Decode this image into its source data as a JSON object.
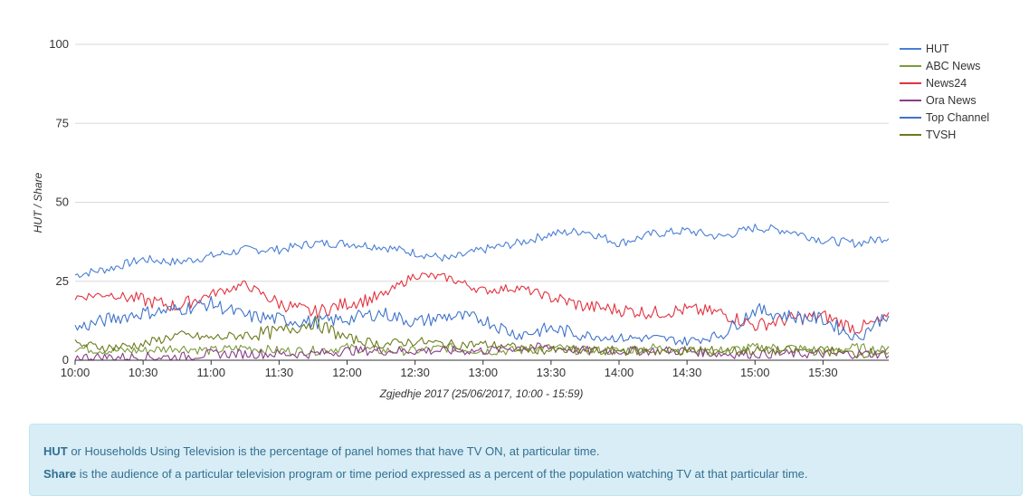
{
  "chart_data": {
    "type": "line",
    "xlabel": "Zgjedhje 2017 (25/06/2017, 10:00 - 15:59)",
    "ylabel": "HUT / Share",
    "ylim": [
      0,
      100
    ],
    "yticks": [
      0,
      25,
      50,
      75,
      100
    ],
    "xlim": [
      "10:00",
      "15:59"
    ],
    "xticks": [
      "10:00",
      "10:30",
      "11:00",
      "11:30",
      "12:00",
      "12:30",
      "13:00",
      "13:30",
      "14:00",
      "14:30",
      "15:00",
      "15:30"
    ],
    "grid": "horizontal",
    "legend_position": "top-right",
    "x": [
      "10:00",
      "10:15",
      "10:30",
      "10:45",
      "11:00",
      "11:15",
      "11:30",
      "11:45",
      "12:00",
      "12:15",
      "12:30",
      "12:45",
      "13:00",
      "13:15",
      "13:30",
      "13:45",
      "14:00",
      "14:15",
      "14:30",
      "14:45",
      "15:00",
      "15:15",
      "15:30",
      "15:45",
      "15:59"
    ],
    "series": [
      {
        "name": "HUT",
        "color": "#4a7fd6",
        "values": [
          27,
          29,
          32,
          31,
          33,
          35,
          35,
          37,
          37,
          36,
          34,
          32,
          35,
          37,
          40,
          41,
          37,
          40,
          41,
          39,
          42,
          41,
          38,
          37,
          39
        ]
      },
      {
        "name": "ABC News",
        "color": "#7a9a3a",
        "values": [
          4,
          3,
          3,
          4,
          3,
          4,
          3,
          3,
          4,
          3,
          3,
          4,
          3,
          3,
          4,
          3,
          3,
          4,
          3,
          3,
          4,
          4,
          3,
          4,
          3
        ]
      },
      {
        "name": "News24",
        "color": "#e2333f",
        "values": [
          20,
          21,
          19,
          17,
          21,
          24,
          18,
          15,
          18,
          20,
          27,
          26,
          22,
          23,
          20,
          17,
          16,
          15,
          16,
          15,
          11,
          13,
          14,
          10,
          13
        ]
      },
      {
        "name": "Ora News",
        "color": "#8a3d8c",
        "values": [
          1,
          1,
          1,
          1,
          2,
          2,
          2,
          2,
          3,
          3,
          3,
          3,
          3,
          4,
          4,
          3,
          3,
          3,
          3,
          2,
          2,
          2,
          2,
          2,
          2
        ]
      },
      {
        "name": "Top Channel",
        "color": "#3f73c9",
        "values": [
          10,
          13,
          15,
          16,
          18,
          14,
          13,
          12,
          13,
          15,
          12,
          14,
          13,
          8,
          10,
          8,
          7,
          7,
          6,
          8,
          16,
          14,
          13,
          7,
          15
        ]
      },
      {
        "name": "TVSH",
        "color": "#6c7a1e",
        "values": [
          5,
          4,
          5,
          8,
          7,
          8,
          9,
          12,
          7,
          5,
          6,
          5,
          5,
          4,
          3,
          3,
          3,
          3,
          3,
          3,
          3,
          3,
          3,
          2,
          3
        ]
      }
    ]
  },
  "info": {
    "hut_term": "HUT",
    "hut_text": " or Households Using Television is the percentage of panel homes that have TV ON, at particular time.",
    "share_term": "Share",
    "share_text": " is the audience of a particular television program or time period expressed as a percent of the population watching TV at that particular time."
  }
}
